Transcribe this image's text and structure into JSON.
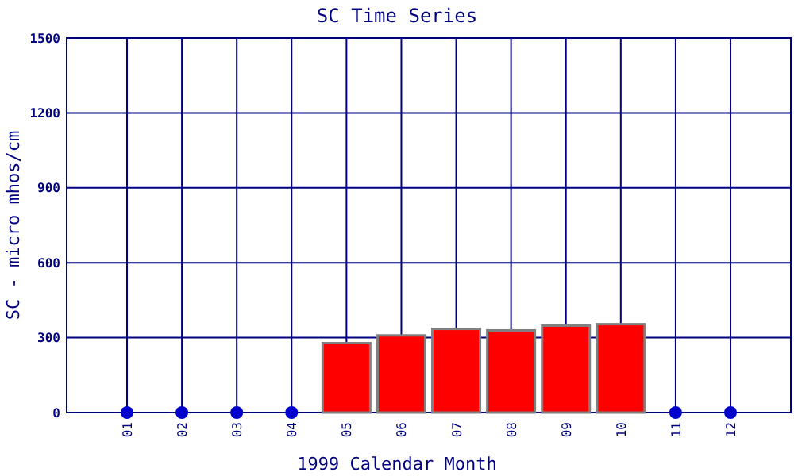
{
  "chart_data": {
    "type": "bar",
    "title": "SC Time Series",
    "xlabel": "1999 Calendar Month",
    "ylabel": "SC - micro mhos/cm",
    "categories": [
      "01",
      "02",
      "03",
      "04",
      "05",
      "06",
      "07",
      "08",
      "09",
      "10",
      "11",
      "12"
    ],
    "series": [
      {
        "color": "#ff0000",
        "values": [
          null,
          null,
          null,
          null,
          278,
          309,
          335,
          329,
          348,
          354,
          null,
          null
        ]
      },
      {
        "type": "scatter",
        "color": "#0000cc",
        "x": [
          "01",
          "02",
          "03",
          "04",
          "11",
          "12"
        ],
        "values": [
          0,
          0,
          0,
          0,
          0,
          0
        ]
      }
    ],
    "ylim": [
      0,
      1500
    ],
    "yticks": [
      0,
      300,
      600,
      900,
      1200,
      1500
    ],
    "grid": true,
    "marker": "circle"
  }
}
